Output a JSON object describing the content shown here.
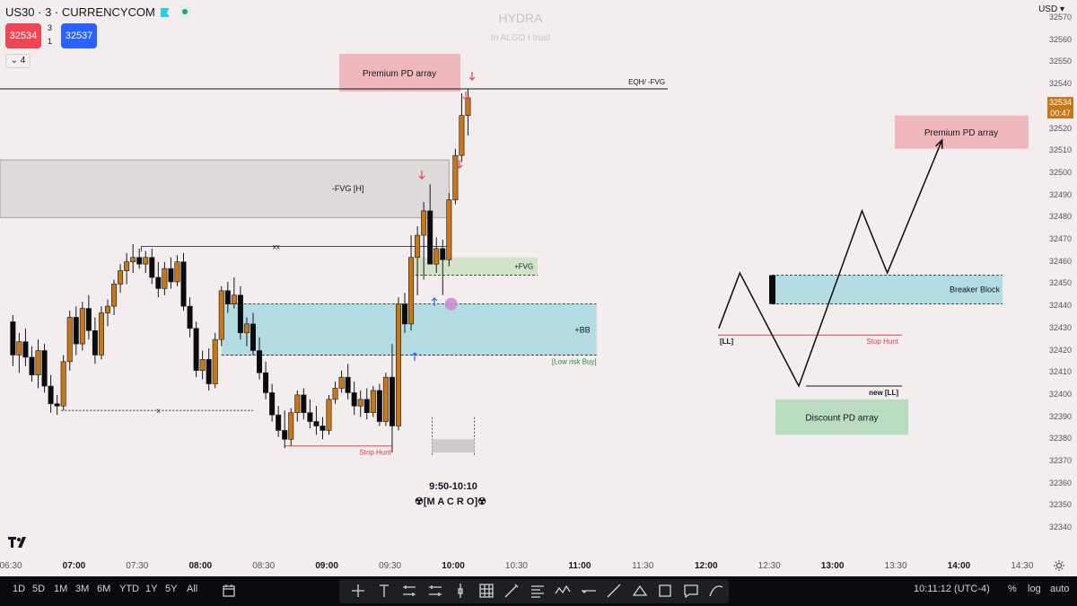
{
  "header": {
    "symbol": "US30 · 3 · CURRENCYCOM",
    "sell_price": "32534",
    "buy_price": "32537",
    "spread_top": "3",
    "spread_bottom": "1",
    "indicators_toggle": "⌄ 4"
  },
  "watermark": {
    "title": "HYDRA",
    "subtitle": "In ALGO I trust"
  },
  "price_axis": {
    "currency": "USD ▾",
    "ticks": [
      "32570",
      "32560",
      "32550",
      "32540",
      "32530",
      "32520",
      "32510",
      "32500",
      "32490",
      "32480",
      "32470",
      "32460",
      "32450",
      "32440",
      "32430",
      "32420",
      "32410",
      "32400",
      "32390",
      "32380",
      "32370",
      "32360",
      "32350",
      "32340"
    ],
    "current_price": "32534",
    "countdown": "00:47"
  },
  "time_axis": {
    "ticks": [
      {
        "label": "06:30",
        "bold": false
      },
      {
        "label": "07:00",
        "bold": true
      },
      {
        "label": "07:30",
        "bold": false
      },
      {
        "label": "08:00",
        "bold": true
      },
      {
        "label": "08:30",
        "bold": false
      },
      {
        "label": "09:00",
        "bold": true
      },
      {
        "label": "09:30",
        "bold": false
      },
      {
        "label": "10:00",
        "bold": true
      },
      {
        "label": "10:30",
        "bold": false
      },
      {
        "label": "11:00",
        "bold": true
      },
      {
        "label": "11:30",
        "bold": false
      },
      {
        "label": "12:00",
        "bold": true
      },
      {
        "label": "12:30",
        "bold": false
      },
      {
        "label": "13:00",
        "bold": true
      },
      {
        "label": "13:30",
        "bold": false
      },
      {
        "label": "14:00",
        "bold": true
      },
      {
        "label": "14:30",
        "bold": false
      }
    ]
  },
  "annotations": {
    "premium_left": "Premium PD array",
    "eqh": "EQH/ -FVG",
    "fvg_h": "-FVG [H]",
    "xx": "xx",
    "x": "x",
    "plus_fvg": "+FVG",
    "plus_bb": "+BB",
    "low_risk": "[Low risk Buy]",
    "stop_hunt_left": "Stop Hunt",
    "macro_time": "9:50-10:10",
    "macro_label": "☢[M A C R O]☢",
    "premium_right": "Premium PD array",
    "breaker_block": "Breaker Block",
    "ll": "[LL]",
    "stop_hunt_right": "Stop Hunt",
    "new_ll": "new [LL]",
    "discount": "Discount PD array"
  },
  "colors": {
    "bull": "#c67718",
    "bear": "#0b0b0b",
    "premium": "#f0b7bc",
    "discount": "#b9dcc0",
    "teal_zone": "#b3dde3",
    "gray_zone": "#dedada",
    "stop_hunt": "#e0424d",
    "arrow_down": "#e0424d",
    "arrow_up": "#2962ff"
  },
  "bottom_bar": {
    "timeframes": [
      "1D",
      "5D",
      "1M",
      "3M",
      "6M",
      "YTD",
      "1Y",
      "5Y",
      "All"
    ],
    "clock": "10:11:12 (UTC-4)",
    "percent": "%",
    "log": "log",
    "auto": "auto",
    "tools": [
      "crosshair-icon",
      "text-icon",
      "pattern-icon",
      "pattern-icon",
      "cursor-icon",
      "grid-icon",
      "brush-icon",
      "lines-icon",
      "wave-icon",
      "hline-icon",
      "trendline-icon",
      "fib-icon",
      "rectangle-icon",
      "comment-icon",
      "curve-icon"
    ]
  },
  "chart_data": {
    "type": "candlestick",
    "ylim": [
      32335,
      32575
    ],
    "candles": [
      {
        "t": "06:31",
        "o": 32433,
        "h": 32436,
        "l": 32413,
        "c": 32418
      },
      {
        "t": "06:34",
        "o": 32418,
        "h": 32428,
        "l": 32410,
        "c": 32424
      },
      {
        "t": "06:37",
        "o": 32424,
        "h": 32430,
        "l": 32413,
        "c": 32417
      },
      {
        "t": "06:40",
        "o": 32417,
        "h": 32422,
        "l": 32406,
        "c": 32409
      },
      {
        "t": "06:43",
        "o": 32409,
        "h": 32425,
        "l": 32403,
        "c": 32420
      },
      {
        "t": "06:46",
        "o": 32420,
        "h": 32423,
        "l": 32401,
        "c": 32404
      },
      {
        "t": "06:49",
        "o": 32404,
        "h": 32409,
        "l": 32392,
        "c": 32396
      },
      {
        "t": "06:52",
        "o": 32396,
        "h": 32400,
        "l": 32391,
        "c": 32395
      },
      {
        "t": "06:55",
        "o": 32395,
        "h": 32418,
        "l": 32393,
        "c": 32415
      },
      {
        "t": "06:58",
        "o": 32415,
        "h": 32438,
        "l": 32411,
        "c": 32435
      },
      {
        "t": "07:01",
        "o": 32435,
        "h": 32440,
        "l": 32418,
        "c": 32423
      },
      {
        "t": "07:04",
        "o": 32423,
        "h": 32442,
        "l": 32420,
        "c": 32439
      },
      {
        "t": "07:07",
        "o": 32439,
        "h": 32445,
        "l": 32425,
        "c": 32429
      },
      {
        "t": "07:10",
        "o": 32429,
        "h": 32435,
        "l": 32414,
        "c": 32418
      },
      {
        "t": "07:13",
        "o": 32418,
        "h": 32440,
        "l": 32416,
        "c": 32437
      },
      {
        "t": "07:16",
        "o": 32437,
        "h": 32443,
        "l": 32431,
        "c": 32440
      },
      {
        "t": "07:19",
        "o": 32440,
        "h": 32452,
        "l": 32436,
        "c": 32450
      },
      {
        "t": "07:22",
        "o": 32450,
        "h": 32459,
        "l": 32446,
        "c": 32456
      },
      {
        "t": "07:25",
        "o": 32456,
        "h": 32464,
        "l": 32450,
        "c": 32460
      },
      {
        "t": "07:28",
        "o": 32460,
        "h": 32468,
        "l": 32455,
        "c": 32462
      },
      {
        "t": "07:31",
        "o": 32462,
        "h": 32466,
        "l": 32457,
        "c": 32459
      },
      {
        "t": "07:34",
        "o": 32459,
        "h": 32465,
        "l": 32455,
        "c": 32462
      },
      {
        "t": "07:37",
        "o": 32462,
        "h": 32466,
        "l": 32450,
        "c": 32453
      },
      {
        "t": "07:40",
        "o": 32453,
        "h": 32460,
        "l": 32444,
        "c": 32448
      },
      {
        "t": "07:43",
        "o": 32448,
        "h": 32460,
        "l": 32445,
        "c": 32457
      },
      {
        "t": "07:46",
        "o": 32457,
        "h": 32462,
        "l": 32448,
        "c": 32451
      },
      {
        "t": "07:49",
        "o": 32451,
        "h": 32463,
        "l": 32449,
        "c": 32460
      },
      {
        "t": "07:52",
        "o": 32460,
        "h": 32464,
        "l": 32438,
        "c": 32440
      },
      {
        "t": "07:55",
        "o": 32440,
        "h": 32444,
        "l": 32426,
        "c": 32430
      },
      {
        "t": "07:58",
        "o": 32430,
        "h": 32433,
        "l": 32408,
        "c": 32411
      },
      {
        "t": "08:01",
        "o": 32411,
        "h": 32420,
        "l": 32407,
        "c": 32416
      },
      {
        "t": "08:04",
        "o": 32416,
        "h": 32421,
        "l": 32402,
        "c": 32405
      },
      {
        "t": "08:07",
        "o": 32405,
        "h": 32428,
        "l": 32403,
        "c": 32425
      },
      {
        "t": "08:10",
        "o": 32425,
        "h": 32449,
        "l": 32422,
        "c": 32447
      },
      {
        "t": "08:13",
        "o": 32447,
        "h": 32451,
        "l": 32437,
        "c": 32441
      },
      {
        "t": "08:16",
        "o": 32441,
        "h": 32453,
        "l": 32439,
        "c": 32445
      },
      {
        "t": "08:19",
        "o": 32445,
        "h": 32449,
        "l": 32425,
        "c": 32428
      },
      {
        "t": "08:22",
        "o": 32428,
        "h": 32435,
        "l": 32422,
        "c": 32432
      },
      {
        "t": "08:25",
        "o": 32432,
        "h": 32437,
        "l": 32418,
        "c": 32420
      },
      {
        "t": "08:28",
        "o": 32420,
        "h": 32426,
        "l": 32407,
        "c": 32410
      },
      {
        "t": "08:31",
        "o": 32410,
        "h": 32415,
        "l": 32398,
        "c": 32401
      },
      {
        "t": "08:34",
        "o": 32401,
        "h": 32405,
        "l": 32388,
        "c": 32391
      },
      {
        "t": "08:37",
        "o": 32391,
        "h": 32395,
        "l": 32381,
        "c": 32384
      },
      {
        "t": "08:40",
        "o": 32384,
        "h": 32393,
        "l": 32376,
        "c": 32380
      },
      {
        "t": "08:43",
        "o": 32380,
        "h": 32394,
        "l": 32377,
        "c": 32392
      },
      {
        "t": "08:46",
        "o": 32392,
        "h": 32402,
        "l": 32388,
        "c": 32400
      },
      {
        "t": "08:49",
        "o": 32400,
        "h": 32403,
        "l": 32389,
        "c": 32392
      },
      {
        "t": "08:52",
        "o": 32392,
        "h": 32398,
        "l": 32385,
        "c": 32388
      },
      {
        "t": "08:55",
        "o": 32388,
        "h": 32395,
        "l": 32382,
        "c": 32386
      },
      {
        "t": "08:58",
        "o": 32386,
        "h": 32390,
        "l": 32380,
        "c": 32384
      },
      {
        "t": "09:01",
        "o": 32384,
        "h": 32400,
        "l": 32382,
        "c": 32398
      },
      {
        "t": "09:04",
        "o": 32398,
        "h": 32406,
        "l": 32396,
        "c": 32403
      },
      {
        "t": "09:07",
        "o": 32403,
        "h": 32411,
        "l": 32401,
        "c": 32408
      },
      {
        "t": "09:10",
        "o": 32408,
        "h": 32414,
        "l": 32398,
        "c": 32401
      },
      {
        "t": "09:13",
        "o": 32401,
        "h": 32406,
        "l": 32391,
        "c": 32395
      },
      {
        "t": "09:16",
        "o": 32395,
        "h": 32402,
        "l": 32390,
        "c": 32398
      },
      {
        "t": "09:19",
        "o": 32398,
        "h": 32403,
        "l": 32389,
        "c": 32392
      },
      {
        "t": "09:22",
        "o": 32392,
        "h": 32404,
        "l": 32390,
        "c": 32402
      },
      {
        "t": "09:25",
        "o": 32402,
        "h": 32405,
        "l": 32386,
        "c": 32388
      },
      {
        "t": "09:28",
        "o": 32388,
        "h": 32410,
        "l": 32386,
        "c": 32408
      },
      {
        "t": "09:31",
        "o": 32408,
        "h": 32423,
        "l": 32374,
        "c": 32386
      },
      {
        "t": "09:34",
        "o": 32386,
        "h": 32444,
        "l": 32384,
        "c": 32441
      },
      {
        "t": "09:37",
        "o": 32441,
        "h": 32446,
        "l": 32428,
        "c": 32432
      },
      {
        "t": "09:40",
        "o": 32432,
        "h": 32472,
        "l": 32429,
        "c": 32462
      },
      {
        "t": "09:43",
        "o": 32462,
        "h": 32476,
        "l": 32445,
        "c": 32472
      },
      {
        "t": "09:46",
        "o": 32472,
        "h": 32487,
        "l": 32452,
        "c": 32483
      },
      {
        "t": "09:49",
        "o": 32483,
        "h": 32495,
        "l": 32461,
        "c": 32459
      },
      {
        "t": "09:52",
        "o": 32459,
        "h": 32471,
        "l": 32455,
        "c": 32466
      },
      {
        "t": "09:55",
        "o": 32466,
        "h": 32470,
        "l": 32445,
        "c": 32461
      },
      {
        "t": "09:58",
        "o": 32461,
        "h": 32491,
        "l": 32458,
        "c": 32488
      },
      {
        "t": "10:01",
        "o": 32488,
        "h": 32511,
        "l": 32486,
        "c": 32508
      },
      {
        "t": "10:04",
        "o": 32508,
        "h": 32536,
        "l": 32505,
        "c": 32526
      },
      {
        "t": "10:07",
        "o": 32526,
        "h": 32538,
        "l": 32517,
        "c": 32534
      }
    ],
    "zones": [
      {
        "label": "-FVG [H]",
        "from": 32480,
        "to": 32506
      },
      {
        "label": "+FVG",
        "from": 32454,
        "to": 32462
      },
      {
        "label": "+BB",
        "from": 32418,
        "to": 32441
      },
      {
        "label": "Breaker Block",
        "from": 32441,
        "to": 32454
      },
      {
        "label": "Premium PD array",
        "from": 32511,
        "to": 32526
      },
      {
        "label": "Discount PD array",
        "from": 32382,
        "to": 32398
      }
    ],
    "levels": [
      {
        "label": "EQH/ -FVG",
        "price": 32538
      },
      {
        "label": "xx",
        "price": 32467
      },
      {
        "label": "x",
        "price": 32393
      },
      {
        "label": "Stop Hunt",
        "price": 32377
      },
      {
        "label": "[LL]",
        "price": 32427
      },
      {
        "label": "new [LL]",
        "price": 32404
      }
    ],
    "projection_path": [
      {
        "t": "12:06",
        "p": 32430
      },
      {
        "t": "12:16",
        "p": 32455
      },
      {
        "t": "12:44",
        "p": 32404
      },
      {
        "t": "13:14",
        "p": 32483
      },
      {
        "t": "13:26",
        "p": 32455
      },
      {
        "t": "13:52",
        "p": 32515
      }
    ]
  }
}
